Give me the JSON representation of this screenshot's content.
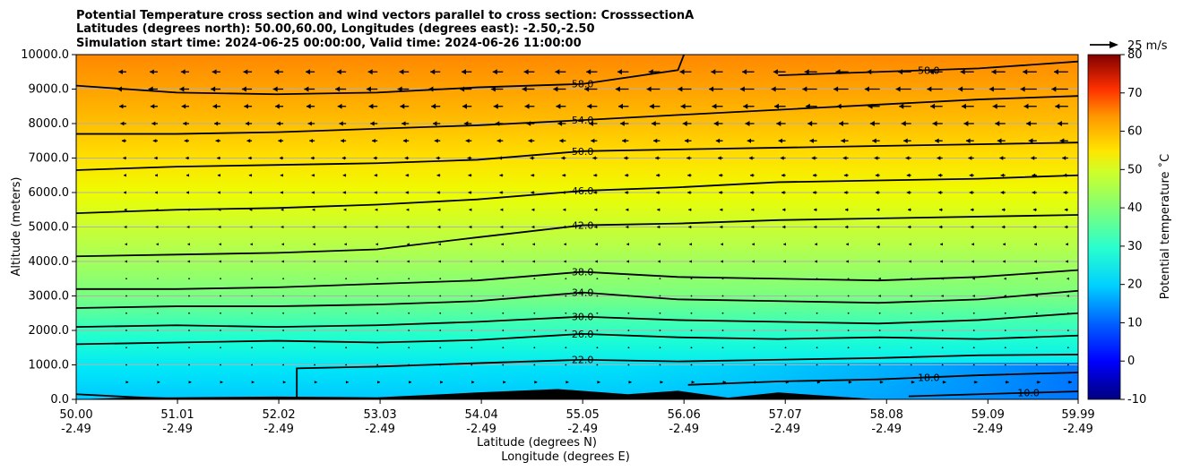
{
  "chart_data": {
    "type": "contour",
    "title_lines": [
      "Potential Temperature cross section and wind vectors parallel to cross section: CrosssectionA",
      "Latitudes (degrees north): 50.00,60.00, Longitudes (degrees east): -2.50,-2.50",
      "Simulation start time: 2024-06-25 00:00:00, Valid time: 2024-06-26 11:00:00"
    ],
    "xlabel_lat": "Latitude (degrees N)",
    "xlabel_lon": "Longitude (degrees E)",
    "ylabel": "Altitude (meters)",
    "x_ticks": [
      {
        "lat": "50.00",
        "lon": "-2.49",
        "value": 50.0
      },
      {
        "lat": "51.01",
        "lon": "-2.49",
        "value": 51.01
      },
      {
        "lat": "52.02",
        "lon": "-2.49",
        "value": 52.02
      },
      {
        "lat": "53.03",
        "lon": "-2.49",
        "value": 53.03
      },
      {
        "lat": "54.04",
        "lon": "-2.49",
        "value": 54.04
      },
      {
        "lat": "55.05",
        "lon": "-2.49",
        "value": 55.05
      },
      {
        "lat": "56.06",
        "lon": "-2.49",
        "value": 56.06
      },
      {
        "lat": "57.07",
        "lon": "-2.49",
        "value": 57.07
      },
      {
        "lat": "58.08",
        "lon": "-2.49",
        "value": 58.08
      },
      {
        "lat": "59.09",
        "lon": "-2.49",
        "value": 59.09
      },
      {
        "lat": "59.99",
        "lon": "-2.49",
        "value": 59.99
      }
    ],
    "xlim": [
      50.0,
      59.99
    ],
    "y_ticks": [
      "0.0",
      "1000.0",
      "2000.0",
      "3000.0",
      "4000.0",
      "5000.0",
      "6000.0",
      "7000.0",
      "8000.0",
      "9000.0",
      "10000.0"
    ],
    "ylim": [
      0,
      10000
    ],
    "colorbar": {
      "label": "Potential temperature ˚C",
      "range": [
        -10,
        80
      ],
      "ticks": [
        "-10",
        "0",
        "10",
        "20",
        "30",
        "40",
        "50",
        "60",
        "70",
        "80"
      ],
      "colormap": "jet"
    },
    "quiver_key": "25 m/s",
    "contours": [
      {
        "label": "10.0",
        "points": [
          [
            58.3,
            90
          ],
          [
            59.0,
            150
          ],
          [
            59.99,
            230
          ]
        ]
      },
      {
        "label": "18.0",
        "points": [
          [
            56.1,
            420
          ],
          [
            57.0,
            520
          ],
          [
            58.0,
            580
          ],
          [
            59.0,
            700
          ],
          [
            59.99,
            780
          ]
        ]
      },
      {
        "label": "18.0",
        "points": [
          [
            50.0,
            150
          ],
          [
            50.6,
            60
          ],
          [
            51.2,
            0
          ]
        ]
      },
      {
        "label": "22.0",
        "points": [
          [
            52.2,
            0
          ],
          [
            52.2,
            900
          ],
          [
            53.0,
            950
          ],
          [
            54.0,
            1050
          ],
          [
            55.05,
            1150
          ],
          [
            56.0,
            1100
          ],
          [
            57.0,
            1150
          ],
          [
            58.0,
            1200
          ],
          [
            59.0,
            1280
          ],
          [
            59.99,
            1300
          ]
        ]
      },
      {
        "label": "26.0",
        "points": [
          [
            50.0,
            1600
          ],
          [
            51.0,
            1650
          ],
          [
            52.0,
            1700
          ],
          [
            53.0,
            1650
          ],
          [
            54.0,
            1720
          ],
          [
            55.05,
            1900
          ],
          [
            56.0,
            1800
          ],
          [
            57.0,
            1750
          ],
          [
            58.0,
            1800
          ],
          [
            59.0,
            1750
          ],
          [
            59.99,
            1850
          ]
        ]
      },
      {
        "label": "30.0",
        "points": [
          [
            50.0,
            2100
          ],
          [
            51.0,
            2150
          ],
          [
            52.0,
            2100
          ],
          [
            53.0,
            2150
          ],
          [
            54.0,
            2250
          ],
          [
            55.05,
            2400
          ],
          [
            56.0,
            2300
          ],
          [
            57.0,
            2250
          ],
          [
            58.0,
            2200
          ],
          [
            59.0,
            2300
          ],
          [
            59.99,
            2500
          ]
        ]
      },
      {
        "label": "34.0",
        "points": [
          [
            50.0,
            2650
          ],
          [
            51.0,
            2700
          ],
          [
            52.0,
            2700
          ],
          [
            53.0,
            2750
          ],
          [
            54.0,
            2850
          ],
          [
            55.05,
            3100
          ],
          [
            56.0,
            2900
          ],
          [
            57.0,
            2850
          ],
          [
            58.0,
            2800
          ],
          [
            59.0,
            2900
          ],
          [
            59.99,
            3150
          ]
        ]
      },
      {
        "label": "38.0",
        "points": [
          [
            50.0,
            3200
          ],
          [
            51.0,
            3200
          ],
          [
            52.0,
            3250
          ],
          [
            53.0,
            3350
          ],
          [
            54.0,
            3450
          ],
          [
            55.05,
            3700
          ],
          [
            56.0,
            3550
          ],
          [
            57.0,
            3500
          ],
          [
            58.0,
            3450
          ],
          [
            59.0,
            3550
          ],
          [
            59.99,
            3750
          ]
        ]
      },
      {
        "label": "42.0",
        "points": [
          [
            50.0,
            4150
          ],
          [
            51.0,
            4200
          ],
          [
            52.0,
            4250
          ],
          [
            53.0,
            4350
          ],
          [
            54.0,
            4700
          ],
          [
            55.05,
            5050
          ],
          [
            56.0,
            5100
          ],
          [
            57.0,
            5200
          ],
          [
            58.0,
            5250
          ],
          [
            59.0,
            5300
          ],
          [
            59.99,
            5350
          ]
        ]
      },
      {
        "label": "46.0",
        "points": [
          [
            50.0,
            5400
          ],
          [
            51.0,
            5500
          ],
          [
            52.0,
            5550
          ],
          [
            53.0,
            5650
          ],
          [
            54.0,
            5800
          ],
          [
            55.05,
            6050
          ],
          [
            56.0,
            6150
          ],
          [
            57.0,
            6300
          ],
          [
            58.0,
            6350
          ],
          [
            59.0,
            6400
          ],
          [
            59.99,
            6500
          ]
        ]
      },
      {
        "label": "50.0",
        "points": [
          [
            50.0,
            6650
          ],
          [
            51.0,
            6750
          ],
          [
            52.0,
            6800
          ],
          [
            53.0,
            6850
          ],
          [
            54.0,
            6950
          ],
          [
            55.05,
            7200
          ],
          [
            56.0,
            7250
          ],
          [
            57.0,
            7300
          ],
          [
            58.0,
            7350
          ],
          [
            59.0,
            7400
          ],
          [
            59.99,
            7450
          ]
        ]
      },
      {
        "label": "54.0",
        "points": [
          [
            50.0,
            7700
          ],
          [
            51.0,
            7700
          ],
          [
            52.0,
            7750
          ],
          [
            53.0,
            7850
          ],
          [
            54.0,
            7950
          ],
          [
            55.05,
            8100
          ],
          [
            56.0,
            8250
          ],
          [
            57.0,
            8400
          ],
          [
            58.0,
            8550
          ],
          [
            59.0,
            8700
          ],
          [
            59.99,
            8800
          ]
        ]
      },
      {
        "label": "58.0",
        "points": [
          [
            50.0,
            9100
          ],
          [
            51.0,
            8900
          ],
          [
            52.0,
            8850
          ],
          [
            53.0,
            8900
          ],
          [
            54.0,
            9050
          ],
          [
            55.05,
            9150
          ],
          [
            56.0,
            9550
          ],
          [
            56.06,
            10000
          ]
        ]
      },
      {
        "label": "58.0",
        "points": [
          [
            57.0,
            9400
          ],
          [
            58.0,
            9500
          ],
          [
            59.0,
            9600
          ],
          [
            59.99,
            9800
          ]
        ]
      }
    ],
    "terrain": [
      {
        "x": 50.0,
        "h": 0
      },
      {
        "x": 50.5,
        "h": 50
      },
      {
        "x": 51.0,
        "h": 60
      },
      {
        "x": 52.0,
        "h": 80
      },
      {
        "x": 53.0,
        "h": 60
      },
      {
        "x": 54.0,
        "h": 200
      },
      {
        "x": 54.8,
        "h": 300
      },
      {
        "x": 55.5,
        "h": 150
      },
      {
        "x": 56.0,
        "h": 250
      },
      {
        "x": 56.5,
        "h": 50
      },
      {
        "x": 57.0,
        "h": 200
      },
      {
        "x": 57.5,
        "h": 100
      },
      {
        "x": 58.0,
        "h": 0
      }
    ],
    "wind_scale_note": "arrows point toward decreasing latitude (northerly flow), stronger aloft",
    "wind_levels": [
      {
        "z": 9500,
        "speed": 12
      },
      {
        "z": 9000,
        "speed": 14
      },
      {
        "z": 8500,
        "speed": 11
      },
      {
        "z": 8000,
        "speed": 9
      },
      {
        "z": 7500,
        "speed": 7
      },
      {
        "z": 7000,
        "speed": 5
      },
      {
        "z": 6500,
        "speed": 4
      },
      {
        "z": 6000,
        "speed": 4
      },
      {
        "z": 5500,
        "speed": 3
      },
      {
        "z": 5000,
        "speed": 3
      },
      {
        "z": 4500,
        "speed": 2
      },
      {
        "z": 4000,
        "speed": 2
      },
      {
        "z": 3500,
        "speed": 1
      },
      {
        "z": 3000,
        "speed": 1
      },
      {
        "z": 2500,
        "speed": 0.5
      },
      {
        "z": 2000,
        "speed": 0.5
      },
      {
        "z": 1500,
        "speed": 0.5
      },
      {
        "z": 1000,
        "speed": 0.5
      },
      {
        "z": 500,
        "speed": -3
      }
    ]
  }
}
